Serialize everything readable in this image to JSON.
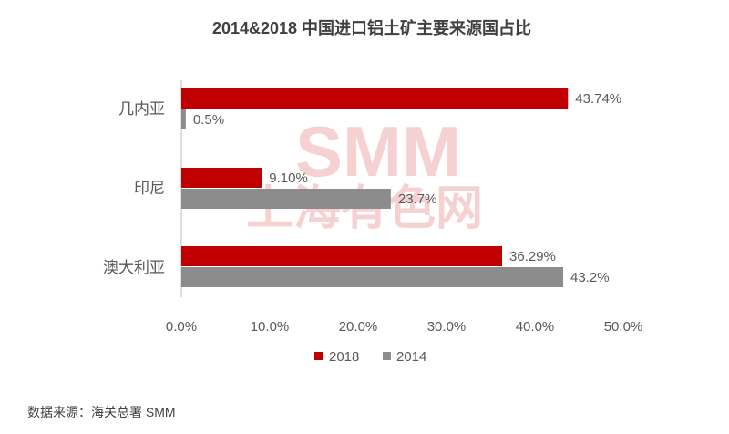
{
  "chart_data": {
    "type": "bar",
    "orientation": "horizontal",
    "title": "2014&2018 中国进口铝土矿主要来源国占比",
    "categories": [
      "几内亚",
      "印尼",
      "澳大利亚"
    ],
    "series": [
      {
        "name": "2018",
        "values": [
          43.74,
          9.1,
          36.29
        ],
        "labels": [
          "43.74%",
          "9.10%",
          "36.29%"
        ],
        "color": "#c00000"
      },
      {
        "name": "2014",
        "values": [
          0.5,
          23.7,
          43.2
        ],
        "labels": [
          "0.5%",
          "23.7%",
          "43.2%"
        ],
        "color": "#8c8c8c"
      }
    ],
    "xlim": [
      0,
      50
    ],
    "xticks": [
      "0.0%",
      "10.0%",
      "20.0%",
      "30.0%",
      "40.0%",
      "50.0%"
    ],
    "legend_position": "bottom",
    "grid": false
  },
  "watermark": {
    "line1": "SMM",
    "line2": "上海有色网",
    "color": "#e99a9a"
  },
  "source": "数据来源：海关总署 SMM"
}
